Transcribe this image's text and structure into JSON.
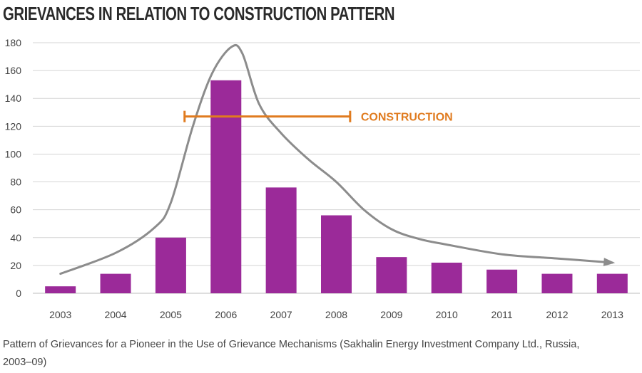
{
  "title": "GRIEVANCES IN RELATION TO CONSTRUCTION PATTERN",
  "caption": "Pattern of Grievances for a Pioneer in the Use of Grievance Mechanisms (Sakhalin Energy Investment Company Ltd., Russia, 2003–09)",
  "chart_data": {
    "type": "bar",
    "categories": [
      "2003",
      "2004",
      "2005",
      "2006",
      "2007",
      "2008",
      "2009",
      "2010",
      "2011",
      "2012",
      "2013"
    ],
    "values": [
      5,
      14,
      40,
      153,
      76,
      56,
      26,
      22,
      17,
      14,
      14
    ],
    "ylim": [
      0,
      180
    ],
    "yticks": [
      0,
      20,
      40,
      60,
      80,
      100,
      120,
      140,
      160,
      180
    ],
    "grid": true,
    "bar_color": "#9b2a99",
    "trend_line": {
      "color": "#8c8c8c",
      "points": [
        [
          2003,
          14
        ],
        [
          2004,
          29
        ],
        [
          2004.7,
          47
        ],
        [
          2005,
          65
        ],
        [
          2005.4,
          120
        ],
        [
          2005.75,
          158
        ],
        [
          2006.1,
          177
        ],
        [
          2006.3,
          172
        ],
        [
          2006.6,
          136
        ],
        [
          2007,
          115
        ],
        [
          2007.5,
          96
        ],
        [
          2008,
          80
        ],
        [
          2008.5,
          60
        ],
        [
          2009,
          46
        ],
        [
          2009.5,
          39
        ],
        [
          2010,
          35
        ],
        [
          2011,
          28
        ],
        [
          2012,
          25
        ],
        [
          2013,
          22
        ]
      ]
    },
    "construction": {
      "label": "CONSTRUCTION",
      "x_start": 2005.25,
      "x_end": 2008.25,
      "y": 127,
      "color": "#e07b1f"
    }
  }
}
